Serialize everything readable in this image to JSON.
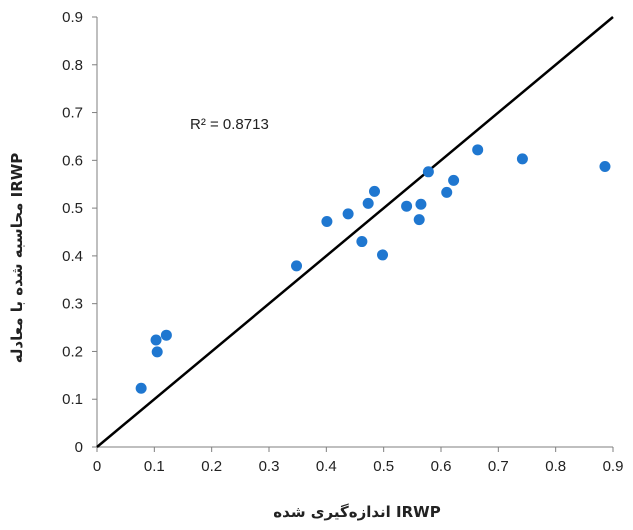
{
  "chart_data": {
    "type": "scatter",
    "xlabel": "IRWP اندازه‌گیری شده",
    "ylabel": "IRWP محاسبه شده با معادله",
    "xlim": [
      0,
      0.9
    ],
    "ylim": [
      0,
      0.9
    ],
    "xticks": [
      "0",
      "0.1",
      "0.2",
      "0.3",
      "0.4",
      "0.5",
      "0.6",
      "0.7",
      "0.8",
      "0.9"
    ],
    "yticks": [
      "0",
      "0.1",
      "0.2",
      "0.3",
      "0.4",
      "0.5",
      "0.6",
      "0.7",
      "0.8",
      "0.9"
    ],
    "annotation": "R² = 0.8713",
    "reference_line": {
      "from": [
        0,
        0
      ],
      "to": [
        0.9,
        0.9
      ]
    },
    "grid": false,
    "legend": "none",
    "point_color": "#1F77D0",
    "line_color": "#000000",
    "points": [
      {
        "x": 0.077,
        "y": 0.123
      },
      {
        "x": 0.103,
        "y": 0.224
      },
      {
        "x": 0.105,
        "y": 0.199
      },
      {
        "x": 0.121,
        "y": 0.234
      },
      {
        "x": 0.348,
        "y": 0.379
      },
      {
        "x": 0.401,
        "y": 0.472
      },
      {
        "x": 0.438,
        "y": 0.488
      },
      {
        "x": 0.462,
        "y": 0.43
      },
      {
        "x": 0.473,
        "y": 0.51
      },
      {
        "x": 0.484,
        "y": 0.535
      },
      {
        "x": 0.498,
        "y": 0.402
      },
      {
        "x": 0.54,
        "y": 0.504
      },
      {
        "x": 0.562,
        "y": 0.476
      },
      {
        "x": 0.565,
        "y": 0.508
      },
      {
        "x": 0.578,
        "y": 0.576
      },
      {
        "x": 0.61,
        "y": 0.533
      },
      {
        "x": 0.622,
        "y": 0.558
      },
      {
        "x": 0.664,
        "y": 0.622
      },
      {
        "x": 0.742,
        "y": 0.603
      },
      {
        "x": 0.886,
        "y": 0.587
      }
    ]
  }
}
